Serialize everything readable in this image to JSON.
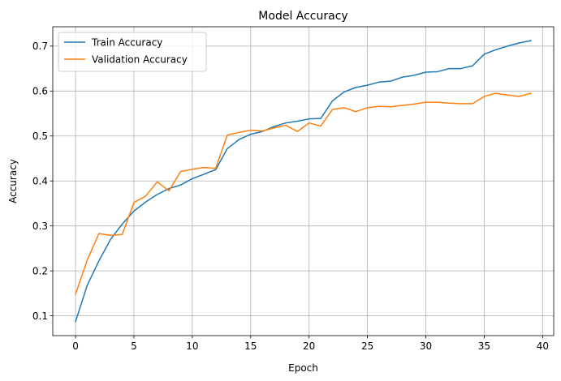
{
  "chart_data": {
    "type": "line",
    "title": "Model Accuracy",
    "xlabel": "Epoch",
    "ylabel": "Accuracy",
    "xlim": [
      -1.95,
      40.95
    ],
    "ylim": [
      0.056,
      0.743
    ],
    "xticks": [
      0,
      5,
      10,
      15,
      20,
      25,
      30,
      35,
      40
    ],
    "yticks": [
      0.1,
      0.2,
      0.3,
      0.4,
      0.5,
      0.6,
      0.7
    ],
    "grid": true,
    "legend_position": "top-left",
    "x": [
      0,
      1,
      2,
      3,
      4,
      5,
      6,
      7,
      8,
      9,
      10,
      11,
      12,
      13,
      14,
      15,
      16,
      17,
      18,
      19,
      20,
      21,
      22,
      23,
      24,
      25,
      26,
      27,
      28,
      29,
      30,
      31,
      32,
      33,
      34,
      35,
      36,
      37,
      38,
      39
    ],
    "series": [
      {
        "name": "Train Accuracy",
        "color": "#1f77b4",
        "values": [
          0.087,
          0.168,
          0.222,
          0.27,
          0.304,
          0.333,
          0.353,
          0.37,
          0.383,
          0.391,
          0.405,
          0.415,
          0.425,
          0.472,
          0.492,
          0.504,
          0.51,
          0.521,
          0.529,
          0.533,
          0.538,
          0.539,
          0.578,
          0.598,
          0.608,
          0.613,
          0.62,
          0.622,
          0.631,
          0.635,
          0.642,
          0.643,
          0.65,
          0.65,
          0.656,
          0.682,
          0.692,
          0.7,
          0.707,
          0.712
        ]
      },
      {
        "name": "Validation Accuracy",
        "color": "#ff7f0e",
        "values": [
          0.148,
          0.224,
          0.283,
          0.279,
          0.281,
          0.352,
          0.366,
          0.398,
          0.378,
          0.421,
          0.426,
          0.43,
          0.428,
          0.502,
          0.508,
          0.513,
          0.511,
          0.518,
          0.524,
          0.51,
          0.529,
          0.522,
          0.559,
          0.563,
          0.554,
          0.563,
          0.566,
          0.565,
          0.568,
          0.571,
          0.575,
          0.575,
          0.573,
          0.572,
          0.572,
          0.588,
          0.595,
          0.591,
          0.588,
          0.595
        ]
      }
    ]
  }
}
